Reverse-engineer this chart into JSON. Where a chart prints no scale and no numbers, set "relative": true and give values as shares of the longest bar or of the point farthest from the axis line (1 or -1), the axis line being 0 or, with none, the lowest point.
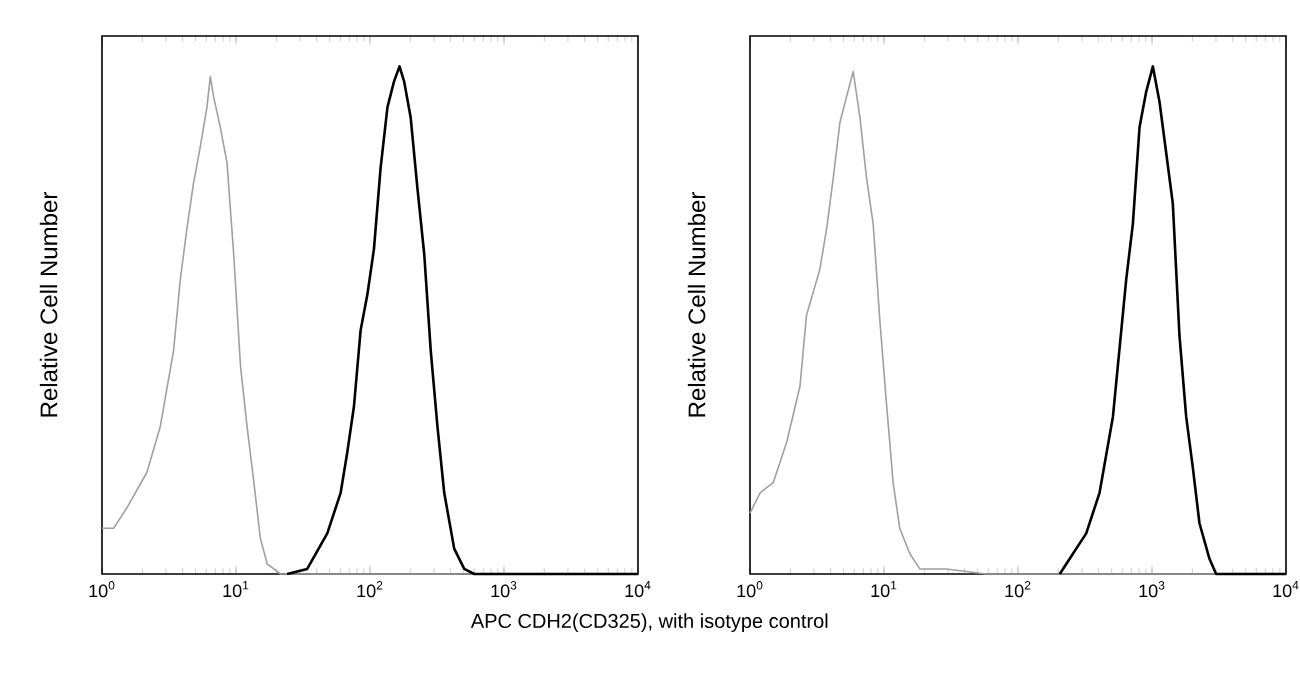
{
  "chart_data": [
    {
      "type": "line",
      "ylabel": "Relative Cell Number",
      "xlabel": "APC CDH2(CD325), with isotype control",
      "log": "x",
      "relative": true,
      "xlim": [
        1,
        10000
      ],
      "xticks": [
        {
          "value": 1,
          "label": "10$^{0}$"
        },
        {
          "value": 10,
          "label": "10$^{1}$"
        },
        {
          "value": 100,
          "label": "10$^{2}$"
        },
        {
          "value": 1000,
          "label": "10$^{3}$"
        },
        {
          "value": 10000,
          "label": "10$^{4}$"
        }
      ],
      "series": [
        {
          "color": "#a0a0a0",
          "x": [
            1,
            1.22,
            1.53,
            2.16,
            2.72,
            3.42,
            3.84,
            4.3,
            4.82,
            5.4,
            6.07,
            6.43,
            6.81,
            7.64,
            8.57,
            9.61,
            10.8,
            12.1,
            13.6,
            15.2,
            17.1,
            21.5,
            27.0,
            10000
          ],
          "values": [
            0.09,
            0.09,
            0.13,
            0.2,
            0.29,
            0.44,
            0.58,
            0.68,
            0.77,
            0.84,
            0.92,
            0.98,
            0.94,
            0.88,
            0.81,
            0.63,
            0.41,
            0.29,
            0.18,
            0.07,
            0.02,
            0,
            0,
            0
          ]
        },
        {
          "color": "#000000",
          "x": [
            24.1,
            34.0,
            48.0,
            60.4,
            67.7,
            75.9,
            85.1,
            95.5,
            107,
            120,
            135,
            151,
            166,
            180,
            201,
            226,
            254,
            284,
            319,
            358,
            425,
            505,
            600,
            10000
          ],
          "values": [
            0,
            0.01,
            0.08,
            0.16,
            0.24,
            0.33,
            0.48,
            0.55,
            0.64,
            0.8,
            0.92,
            0.97,
            1.0,
            0.97,
            0.9,
            0.76,
            0.63,
            0.44,
            0.29,
            0.16,
            0.05,
            0.01,
            0,
            0
          ]
        }
      ]
    },
    {
      "type": "line",
      "ylabel": "Relative Cell Number",
      "log": "x",
      "relative": true,
      "xlim": [
        1,
        10000
      ],
      "xticks": [
        {
          "value": 1,
          "label": "10$^{0}$"
        },
        {
          "value": 10,
          "label": "10$^{1}$"
        },
        {
          "value": 100,
          "label": "10$^{2}$"
        },
        {
          "value": 1000,
          "label": "10$^{3}$"
        },
        {
          "value": 10000,
          "label": "10$^{4}$"
        }
      ],
      "series": [
        {
          "color": "#a0a0a0",
          "x": [
            1,
            1.19,
            1.49,
            1.88,
            2.36,
            2.64,
            3.32,
            3.73,
            4.18,
            4.69,
            5.25,
            5.89,
            6.61,
            7.41,
            8.3,
            9.31,
            10.4,
            11.7,
            13.1,
            15.6,
            18.5,
            29.2,
            58.1,
            10000
          ],
          "values": [
            0.12,
            0.16,
            0.18,
            0.26,
            0.37,
            0.51,
            0.6,
            0.68,
            0.78,
            0.89,
            0.94,
            0.99,
            0.9,
            0.78,
            0.69,
            0.5,
            0.34,
            0.18,
            0.09,
            0.04,
            0.01,
            0.01,
            0,
            0
          ]
        },
        {
          "color": "#000000",
          "x": [
            205,
            257,
            323,
            406,
            511,
            642,
            720,
            807,
            905,
            1015,
            1138,
            1276,
            1430,
            1603,
            1799,
            2016,
            2261,
            2685,
            3010,
            10000
          ],
          "values": [
            0,
            0.04,
            0.08,
            0.16,
            0.31,
            0.58,
            0.69,
            0.88,
            0.95,
            1.0,
            0.93,
            0.83,
            0.73,
            0.47,
            0.31,
            0.21,
            0.1,
            0.03,
            0,
            0
          ]
        }
      ]
    }
  ]
}
